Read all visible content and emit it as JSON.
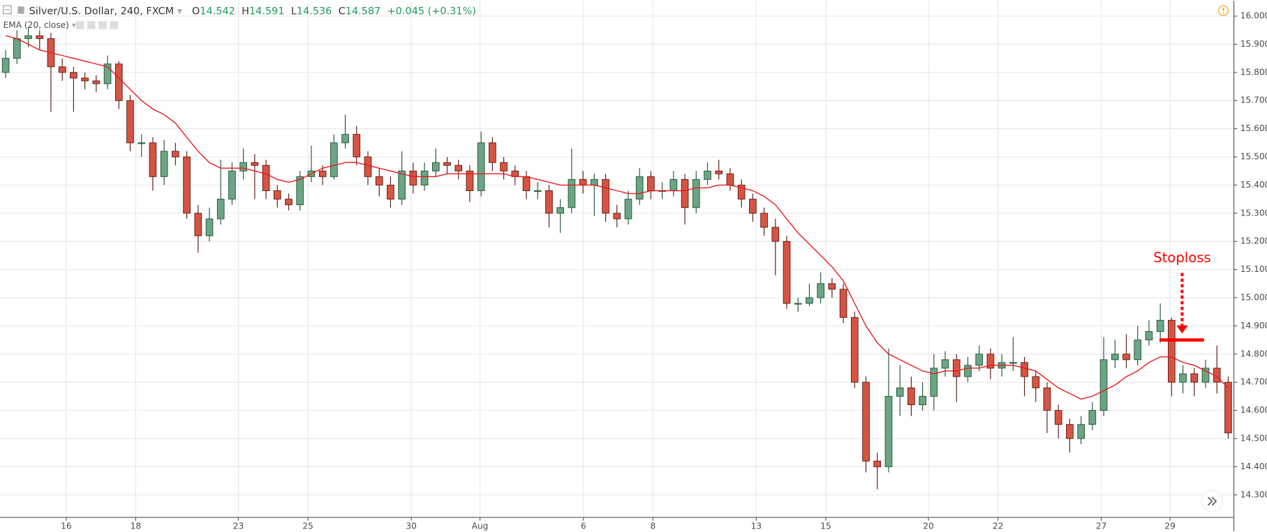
{
  "chart_data": {
    "type": "candlestick",
    "title": "Silver/U.S. Dollar, 240, FXCM",
    "ohlc_header": {
      "open_label": "O",
      "open": 14.542,
      "high_label": "H",
      "high": 14.591,
      "low_label": "L",
      "low": 14.536,
      "close_label": "C",
      "close": 14.587,
      "change": "+0.045 (+0.31%)"
    },
    "up_color": "#6ba583",
    "down_color": "#d75442",
    "open": [
      15.8,
      15.85,
      15.92,
      15.93,
      15.92,
      15.82,
      15.8,
      15.78,
      15.77,
      15.76,
      15.83,
      15.7,
      15.55,
      15.55,
      15.43,
      15.52,
      15.5,
      15.3,
      15.22,
      15.28,
      15.35,
      15.45,
      15.48,
      15.47,
      15.38,
      15.35,
      15.33,
      15.43,
      15.45,
      15.43,
      15.55,
      15.58,
      15.5,
      15.43,
      15.4,
      15.35,
      15.45,
      15.4,
      15.45,
      15.48,
      15.47,
      15.45,
      15.38,
      15.55,
      15.48,
      15.45,
      15.43,
      15.38,
      15.38,
      15.3,
      15.32,
      15.42,
      15.4,
      15.42,
      15.3,
      15.28,
      15.35,
      15.43,
      15.38,
      15.38,
      15.42,
      15.32,
      15.42,
      15.45,
      15.44,
      15.4,
      15.35,
      15.3,
      15.25,
      15.2,
      14.98,
      14.98,
      15.0,
      15.05,
      15.03,
      14.93,
      14.7,
      14.42,
      14.4,
      14.65,
      14.68,
      14.62,
      14.65,
      14.75,
      14.78,
      14.72,
      14.76,
      14.8,
      14.75,
      14.77,
      14.77,
      14.72,
      14.68,
      14.6,
      14.55,
      14.5,
      14.55,
      14.6,
      14.78,
      14.8,
      14.78,
      14.85,
      14.88,
      14.92,
      14.7,
      14.73,
      14.7,
      14.75,
      14.7
    ],
    "high": [
      15.88,
      15.95,
      15.96,
      15.95,
      15.94,
      15.85,
      15.82,
      15.8,
      15.79,
      15.86,
      15.84,
      15.72,
      15.58,
      15.57,
      15.56,
      15.55,
      15.52,
      15.33,
      15.32,
      15.49,
      15.48,
      15.53,
      15.51,
      15.49,
      15.4,
      15.37,
      15.45,
      15.54,
      15.47,
      15.58,
      15.65,
      15.61,
      15.52,
      15.46,
      15.43,
      15.52,
      15.48,
      15.48,
      15.53,
      15.5,
      15.49,
      15.47,
      15.59,
      15.57,
      15.5,
      15.47,
      15.45,
      15.41,
      15.4,
      15.35,
      15.53,
      15.45,
      15.44,
      15.44,
      15.33,
      15.38,
      15.46,
      15.45,
      15.41,
      15.45,
      15.44,
      15.45,
      15.48,
      15.49,
      15.46,
      15.42,
      15.37,
      15.32,
      15.28,
      15.22,
      15.0,
      15.05,
      15.09,
      15.07,
      15.05,
      14.95,
      14.72,
      14.45,
      14.82,
      14.76,
      14.72,
      14.7,
      14.8,
      14.81,
      14.8,
      14.79,
      14.83,
      14.82,
      14.8,
      14.86,
      14.79,
      14.74,
      14.7,
      14.62,
      14.57,
      14.58,
      14.63,
      14.86,
      14.85,
      14.87,
      14.9,
      14.92,
      14.98,
      14.93,
      14.76,
      14.75,
      14.78,
      14.83,
      14.72
    ],
    "low": [
      15.78,
      15.83,
      15.89,
      15.88,
      15.66,
      15.77,
      15.66,
      15.74,
      15.73,
      15.74,
      15.67,
      15.52,
      15.5,
      15.38,
      15.4,
      15.47,
      15.28,
      15.16,
      15.2,
      15.26,
      15.33,
      15.42,
      15.35,
      15.35,
      15.32,
      15.31,
      15.31,
      15.41,
      15.4,
      15.42,
      15.53,
      15.47,
      15.4,
      15.36,
      15.32,
      15.33,
      15.37,
      15.38,
      15.43,
      15.44,
      15.42,
      15.34,
      15.36,
      15.45,
      15.42,
      15.4,
      15.35,
      15.35,
      15.25,
      15.23,
      15.3,
      15.37,
      15.29,
      15.27,
      15.25,
      15.26,
      15.33,
      15.35,
      15.35,
      15.36,
      15.26,
      15.3,
      15.4,
      15.42,
      15.38,
      15.32,
      15.27,
      15.22,
      15.08,
      14.96,
      14.95,
      14.97,
      14.98,
      15.0,
      14.91,
      14.68,
      14.38,
      14.32,
      14.38,
      14.58,
      14.58,
      14.6,
      14.6,
      14.72,
      14.63,
      14.7,
      14.74,
      14.71,
      14.72,
      14.74,
      14.65,
      14.63,
      14.52,
      14.5,
      14.45,
      14.48,
      14.53,
      14.58,
      14.75,
      14.75,
      14.76,
      14.83,
      14.84,
      14.65,
      14.66,
      14.65,
      14.68,
      14.66,
      14.5
    ],
    "close": [
      15.85,
      15.92,
      15.93,
      15.92,
      15.82,
      15.8,
      15.78,
      15.77,
      15.76,
      15.83,
      15.7,
      15.55,
      15.55,
      15.43,
      15.52,
      15.5,
      15.3,
      15.22,
      15.28,
      15.35,
      15.45,
      15.48,
      15.47,
      15.38,
      15.35,
      15.33,
      15.43,
      15.45,
      15.43,
      15.55,
      15.58,
      15.5,
      15.43,
      15.4,
      15.35,
      15.45,
      15.4,
      15.45,
      15.48,
      15.47,
      15.45,
      15.38,
      15.55,
      15.48,
      15.45,
      15.43,
      15.38,
      15.38,
      15.3,
      15.32,
      15.42,
      15.4,
      15.42,
      15.3,
      15.28,
      15.35,
      15.43,
      15.38,
      15.38,
      15.42,
      15.32,
      15.42,
      15.45,
      15.44,
      15.4,
      15.35,
      15.3,
      15.25,
      15.2,
      14.98,
      14.98,
      15.0,
      15.05,
      15.03,
      14.93,
      14.7,
      14.42,
      14.4,
      14.65,
      14.68,
      14.62,
      14.65,
      14.75,
      14.78,
      14.72,
      14.76,
      14.8,
      14.75,
      14.77,
      14.77,
      14.72,
      14.68,
      14.6,
      14.55,
      14.5,
      14.55,
      14.6,
      14.78,
      14.8,
      14.78,
      14.85,
      14.88,
      14.92,
      14.7,
      14.73,
      14.7,
      14.75,
      14.7,
      14.52
    ],
    "series": [
      {
        "name": "EMA (20, close)",
        "color": "#e8191f",
        "values": [
          15.93,
          15.92,
          15.9,
          15.88,
          15.87,
          15.86,
          15.85,
          15.84,
          15.83,
          15.82,
          15.78,
          15.74,
          15.7,
          15.67,
          15.65,
          15.62,
          15.57,
          15.52,
          15.48,
          15.46,
          15.46,
          15.46,
          15.45,
          15.44,
          15.42,
          15.41,
          15.42,
          15.44,
          15.46,
          15.47,
          15.48,
          15.48,
          15.47,
          15.46,
          15.45,
          15.44,
          15.43,
          15.43,
          15.43,
          15.44,
          15.44,
          15.44,
          15.44,
          15.44,
          15.44,
          15.43,
          15.43,
          15.42,
          15.41,
          15.4,
          15.4,
          15.4,
          15.4,
          15.39,
          15.38,
          15.37,
          15.37,
          15.38,
          15.38,
          15.38,
          15.38,
          15.39,
          15.39,
          15.4,
          15.4,
          15.39,
          15.38,
          15.36,
          15.33,
          15.28,
          15.23,
          15.19,
          15.15,
          15.11,
          15.06,
          14.98,
          14.9,
          14.84,
          14.8,
          14.78,
          14.76,
          14.74,
          14.73,
          14.74,
          14.74,
          14.75,
          14.75,
          14.76,
          14.76,
          14.76,
          14.75,
          14.74,
          14.71,
          14.68,
          14.66,
          14.64,
          14.65,
          14.67,
          14.69,
          14.72,
          14.74,
          14.77,
          14.79,
          14.79,
          14.77,
          14.76,
          14.74,
          14.72,
          14.68
        ]
      }
    ],
    "xlim": [
      -0.5,
      108.5
    ],
    "xticks": [
      {
        "value": 5.35,
        "label": "16"
      },
      {
        "value": 11.49,
        "label": "18"
      },
      {
        "value": 20.56,
        "label": "23"
      },
      {
        "value": 26.7,
        "label": "25"
      },
      {
        "value": 35.83,
        "label": "30"
      },
      {
        "value": 41.9,
        "label": "Aug"
      },
      {
        "value": 51.04,
        "label": "6"
      },
      {
        "value": 57.18,
        "label": "8"
      },
      {
        "value": 66.31,
        "label": "13"
      },
      {
        "value": 72.45,
        "label": "15"
      },
      {
        "value": 81.52,
        "label": "20"
      },
      {
        "value": 87.66,
        "label": "22"
      },
      {
        "value": 96.79,
        "label": "27"
      },
      {
        "value": 102.86,
        "label": "29"
      }
    ],
    "ylim": [
      14.22,
      16.054
    ],
    "yticks": [
      {
        "value": 14.3,
        "label": "14.300"
      },
      {
        "value": 14.4,
        "label": "14.400"
      },
      {
        "value": 14.5,
        "label": "14.500"
      },
      {
        "value": 14.6,
        "label": "14.600"
      },
      {
        "value": 14.7,
        "label": "14.700"
      },
      {
        "value": 14.8,
        "label": "14.800"
      },
      {
        "value": 14.9,
        "label": "14.900"
      },
      {
        "value": 15,
        "label": "15.000"
      },
      {
        "value": 15.1,
        "label": "15.100"
      },
      {
        "value": 15.2,
        "label": "15.200"
      },
      {
        "value": 15.3,
        "label": "15.300"
      },
      {
        "value": 15.4,
        "label": "15.400"
      },
      {
        "value": 15.5,
        "label": "15.500"
      },
      {
        "value": 15.6,
        "label": "15.600"
      },
      {
        "value": 15.7,
        "label": "15.700"
      },
      {
        "value": 15.8,
        "label": "15.800"
      },
      {
        "value": 15.9,
        "label": "15.900"
      },
      {
        "value": 16,
        "label": "16.000"
      }
    ],
    "grid": true,
    "annotations": [
      {
        "text": "Stoploss",
        "value": 14.85,
        "color": "#f00"
      }
    ]
  }
}
